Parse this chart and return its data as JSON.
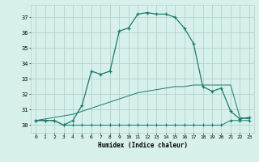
{
  "xlabel": "Humidex (Indice chaleur)",
  "background_color": "#d8f0ec",
  "grid_color": "#aed4cc",
  "line_color": "#1a7a6e",
  "xlim_min": -0.5,
  "xlim_max": 23.5,
  "ylim_min": 29.5,
  "ylim_max": 37.8,
  "yticks": [
    30,
    31,
    32,
    33,
    34,
    35,
    36,
    37
  ],
  "xticks": [
    0,
    1,
    2,
    3,
    4,
    5,
    6,
    7,
    8,
    9,
    10,
    11,
    12,
    13,
    14,
    15,
    16,
    17,
    18,
    19,
    20,
    21,
    22,
    23
  ],
  "curve_main_x": [
    0,
    1,
    2,
    3,
    4,
    5,
    6,
    7,
    8,
    9,
    10,
    11,
    12,
    13,
    14,
    15,
    16,
    17,
    18,
    19,
    20,
    21,
    22,
    23
  ],
  "curve_main_y": [
    30.3,
    30.3,
    30.3,
    30.0,
    30.3,
    31.3,
    33.5,
    33.3,
    33.5,
    36.1,
    36.3,
    37.2,
    37.3,
    37.2,
    37.2,
    37.0,
    36.3,
    35.3,
    32.5,
    32.2,
    32.4,
    30.9,
    30.4,
    30.5
  ],
  "curve_flat_x": [
    0,
    1,
    2,
    3,
    4,
    5,
    6,
    7,
    8,
    9,
    10,
    11,
    12,
    13,
    14,
    15,
    16,
    17,
    18,
    19,
    20,
    21,
    22,
    23
  ],
  "curve_flat_y": [
    30.3,
    30.3,
    30.3,
    30.0,
    30.0,
    30.0,
    30.0,
    30.0,
    30.0,
    30.0,
    30.0,
    30.0,
    30.0,
    30.0,
    30.0,
    30.0,
    30.0,
    30.0,
    30.0,
    30.0,
    30.0,
    30.3,
    30.3,
    30.3
  ],
  "curve_diag_x": [
    0,
    1,
    2,
    3,
    4,
    5,
    6,
    7,
    8,
    9,
    10,
    11,
    12,
    13,
    14,
    15,
    16,
    17,
    18,
    19,
    20,
    21,
    22,
    23
  ],
  "curve_diag_y": [
    30.3,
    30.4,
    30.5,
    30.6,
    30.7,
    30.9,
    31.1,
    31.3,
    31.5,
    31.7,
    31.9,
    32.1,
    32.2,
    32.3,
    32.4,
    32.5,
    32.5,
    32.6,
    32.6,
    32.6,
    32.6,
    32.6,
    30.5,
    30.4
  ]
}
